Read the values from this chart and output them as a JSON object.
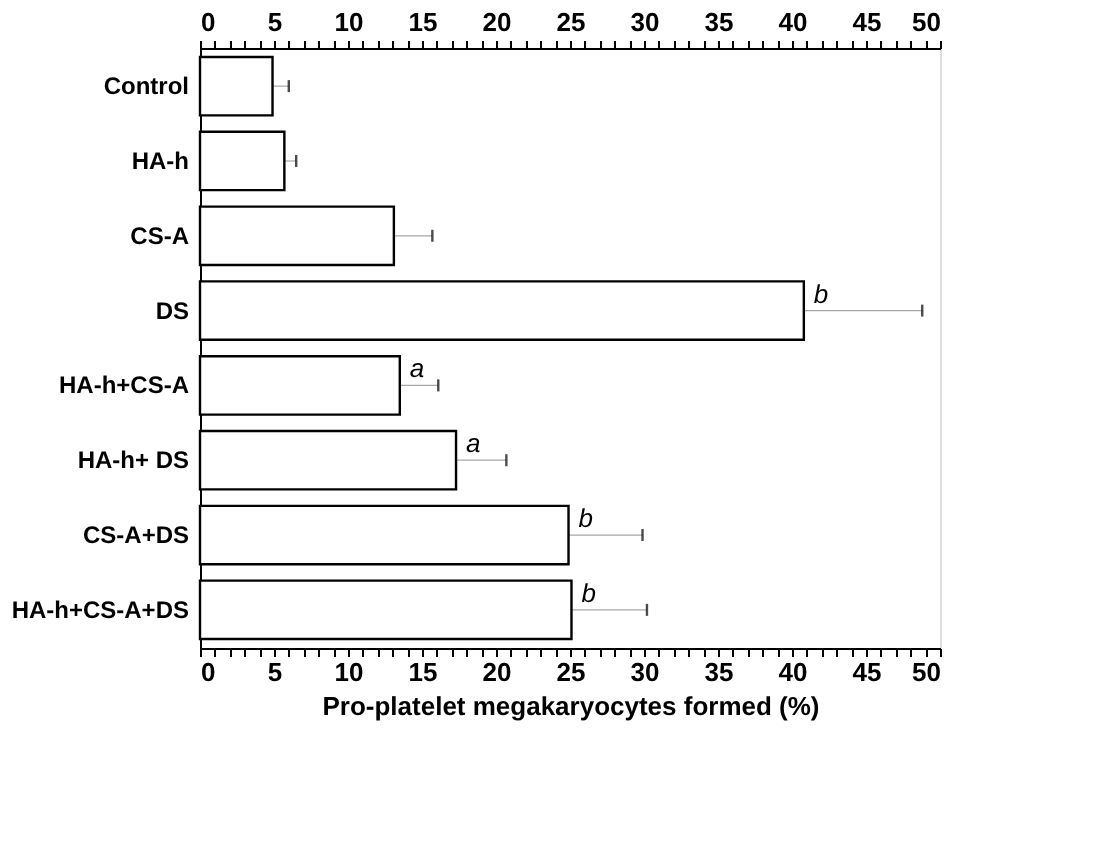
{
  "chart_data": {
    "type": "bar",
    "orientation": "horizontal",
    "categories": [
      "Control",
      "HA-h",
      "CS-A",
      "DS",
      "HA-h+CS-A",
      "HA-h+ DS",
      "CS-A+DS",
      "HA-h+CS-A+DS"
    ],
    "values": [
      4.9,
      5.7,
      13.1,
      40.8,
      13.5,
      17.3,
      24.9,
      25.1
    ],
    "errors": [
      [
        4.9,
        6.0
      ],
      [
        5.7,
        6.5
      ],
      [
        13.1,
        15.7
      ],
      [
        40.8,
        48.8
      ],
      [
        13.5,
        16.1
      ],
      [
        17.3,
        20.7
      ],
      [
        24.9,
        29.9
      ],
      [
        25.1,
        30.2
      ]
    ],
    "color": "#ffffff",
    "xlabel": "Pro-platelet megakaryocytes formed (%)",
    "xlim": [
      0,
      50
    ],
    "xticks": [
      0,
      {
        "value": 1,
        "label": null
      },
      {
        "value": 2,
        "label": null
      },
      {
        "value": 3,
        "label": null
      },
      {
        "value": 4,
        "label": null
      },
      5,
      {
        "value": 6,
        "label": null
      },
      {
        "value": 7,
        "label": null
      },
      {
        "value": 8,
        "label": null
      },
      {
        "value": 9,
        "label": null
      },
      10,
      {
        "value": 11,
        "label": null
      },
      {
        "value": 12,
        "label": null
      },
      {
        "value": 13,
        "label": null
      },
      {
        "value": 14,
        "label": null
      },
      15,
      {
        "value": 16,
        "label": null
      },
      {
        "value": 17,
        "label": null
      },
      {
        "value": 18,
        "label": null
      },
      {
        "value": 19,
        "label": null
      },
      20,
      {
        "value": 21,
        "label": null
      },
      {
        "value": 22,
        "label": null
      },
      {
        "value": 23,
        "label": null
      },
      {
        "value": 24,
        "label": null
      },
      25,
      {
        "value": 26,
        "label": null
      },
      {
        "value": 27,
        "label": null
      },
      {
        "value": 28,
        "label": null
      },
      {
        "value": 29,
        "label": null
      },
      30,
      {
        "value": 31,
        "label": null
      },
      {
        "value": 32,
        "label": null
      },
      {
        "value": 33,
        "label": null
      },
      {
        "value": 34,
        "label": null
      },
      35,
      {
        "value": 36,
        "label": null
      },
      {
        "value": 37,
        "label": null
      },
      {
        "value": 38,
        "label": null
      },
      {
        "value": 39,
        "label": null
      },
      40,
      {
        "value": 41,
        "label": null
      },
      {
        "value": 42,
        "label": null
      },
      {
        "value": 43,
        "label": null
      },
      {
        "value": 44,
        "label": null
      },
      45,
      {
        "value": 46,
        "label": null
      },
      {
        "value": 47,
        "label": null
      },
      {
        "value": 48,
        "label": null
      },
      {
        "value": 49,
        "label": null
      },
      50
    ],
    "x2lim": [
      0,
      50
    ],
    "x2ticks": [
      0,
      {
        "value": 1,
        "label": null
      },
      {
        "value": 2,
        "label": null
      },
      {
        "value": 3,
        "label": null
      },
      {
        "value": 4,
        "label": null
      },
      5,
      {
        "value": 6,
        "label": null
      },
      {
        "value": 7,
        "label": null
      },
      {
        "value": 8,
        "label": null
      },
      {
        "value": 9,
        "label": null
      },
      10,
      {
        "value": 11,
        "label": null
      },
      {
        "value": 12,
        "label": null
      },
      {
        "value": 13,
        "label": null
      },
      {
        "value": 14,
        "label": null
      },
      15,
      {
        "value": 16,
        "label": null
      },
      {
        "value": 17,
        "label": null
      },
      {
        "value": 18,
        "label": null
      },
      {
        "value": 19,
        "label": null
      },
      20,
      {
        "value": 21,
        "label": null
      },
      {
        "value": 22,
        "label": null
      },
      {
        "value": 23,
        "label": null
      },
      {
        "value": 24,
        "label": null
      },
      25,
      {
        "value": 26,
        "label": null
      },
      {
        "value": 27,
        "label": null
      },
      {
        "value": 28,
        "label": null
      },
      {
        "value": 29,
        "label": null
      },
      30,
      {
        "value": 31,
        "label": null
      },
      {
        "value": 32,
        "label": null
      },
      {
        "value": 33,
        "label": null
      },
      {
        "value": 34,
        "label": null
      },
      35,
      {
        "value": 36,
        "label": null
      },
      {
        "value": 37,
        "label": null
      },
      {
        "value": 38,
        "label": null
      },
      {
        "value": 39,
        "label": null
      },
      40,
      {
        "value": 41,
        "label": null
      },
      {
        "value": 42,
        "label": null
      },
      {
        "value": 43,
        "label": null
      },
      {
        "value": 44,
        "label": null
      },
      45,
      {
        "value": 46,
        "label": null
      },
      {
        "value": 47,
        "label": null
      },
      {
        "value": 48,
        "label": null
      },
      {
        "value": 49,
        "label": null
      },
      50
    ],
    "annotations": [
      {
        "text": "b",
        "x": 40.8,
        "y": "DS"
      },
      {
        "text": "a",
        "x": 13.5,
        "y": "HA-h+CS-A"
      },
      {
        "text": "a",
        "x": 17.3,
        "y": "HA-h+ DS"
      },
      {
        "text": "b",
        "x": 24.9,
        "y": "CS-A+DS"
      },
      {
        "text": "b",
        "x": 25.1,
        "y": "HA-h+CS-A+DS"
      }
    ],
    "grid": false
  }
}
